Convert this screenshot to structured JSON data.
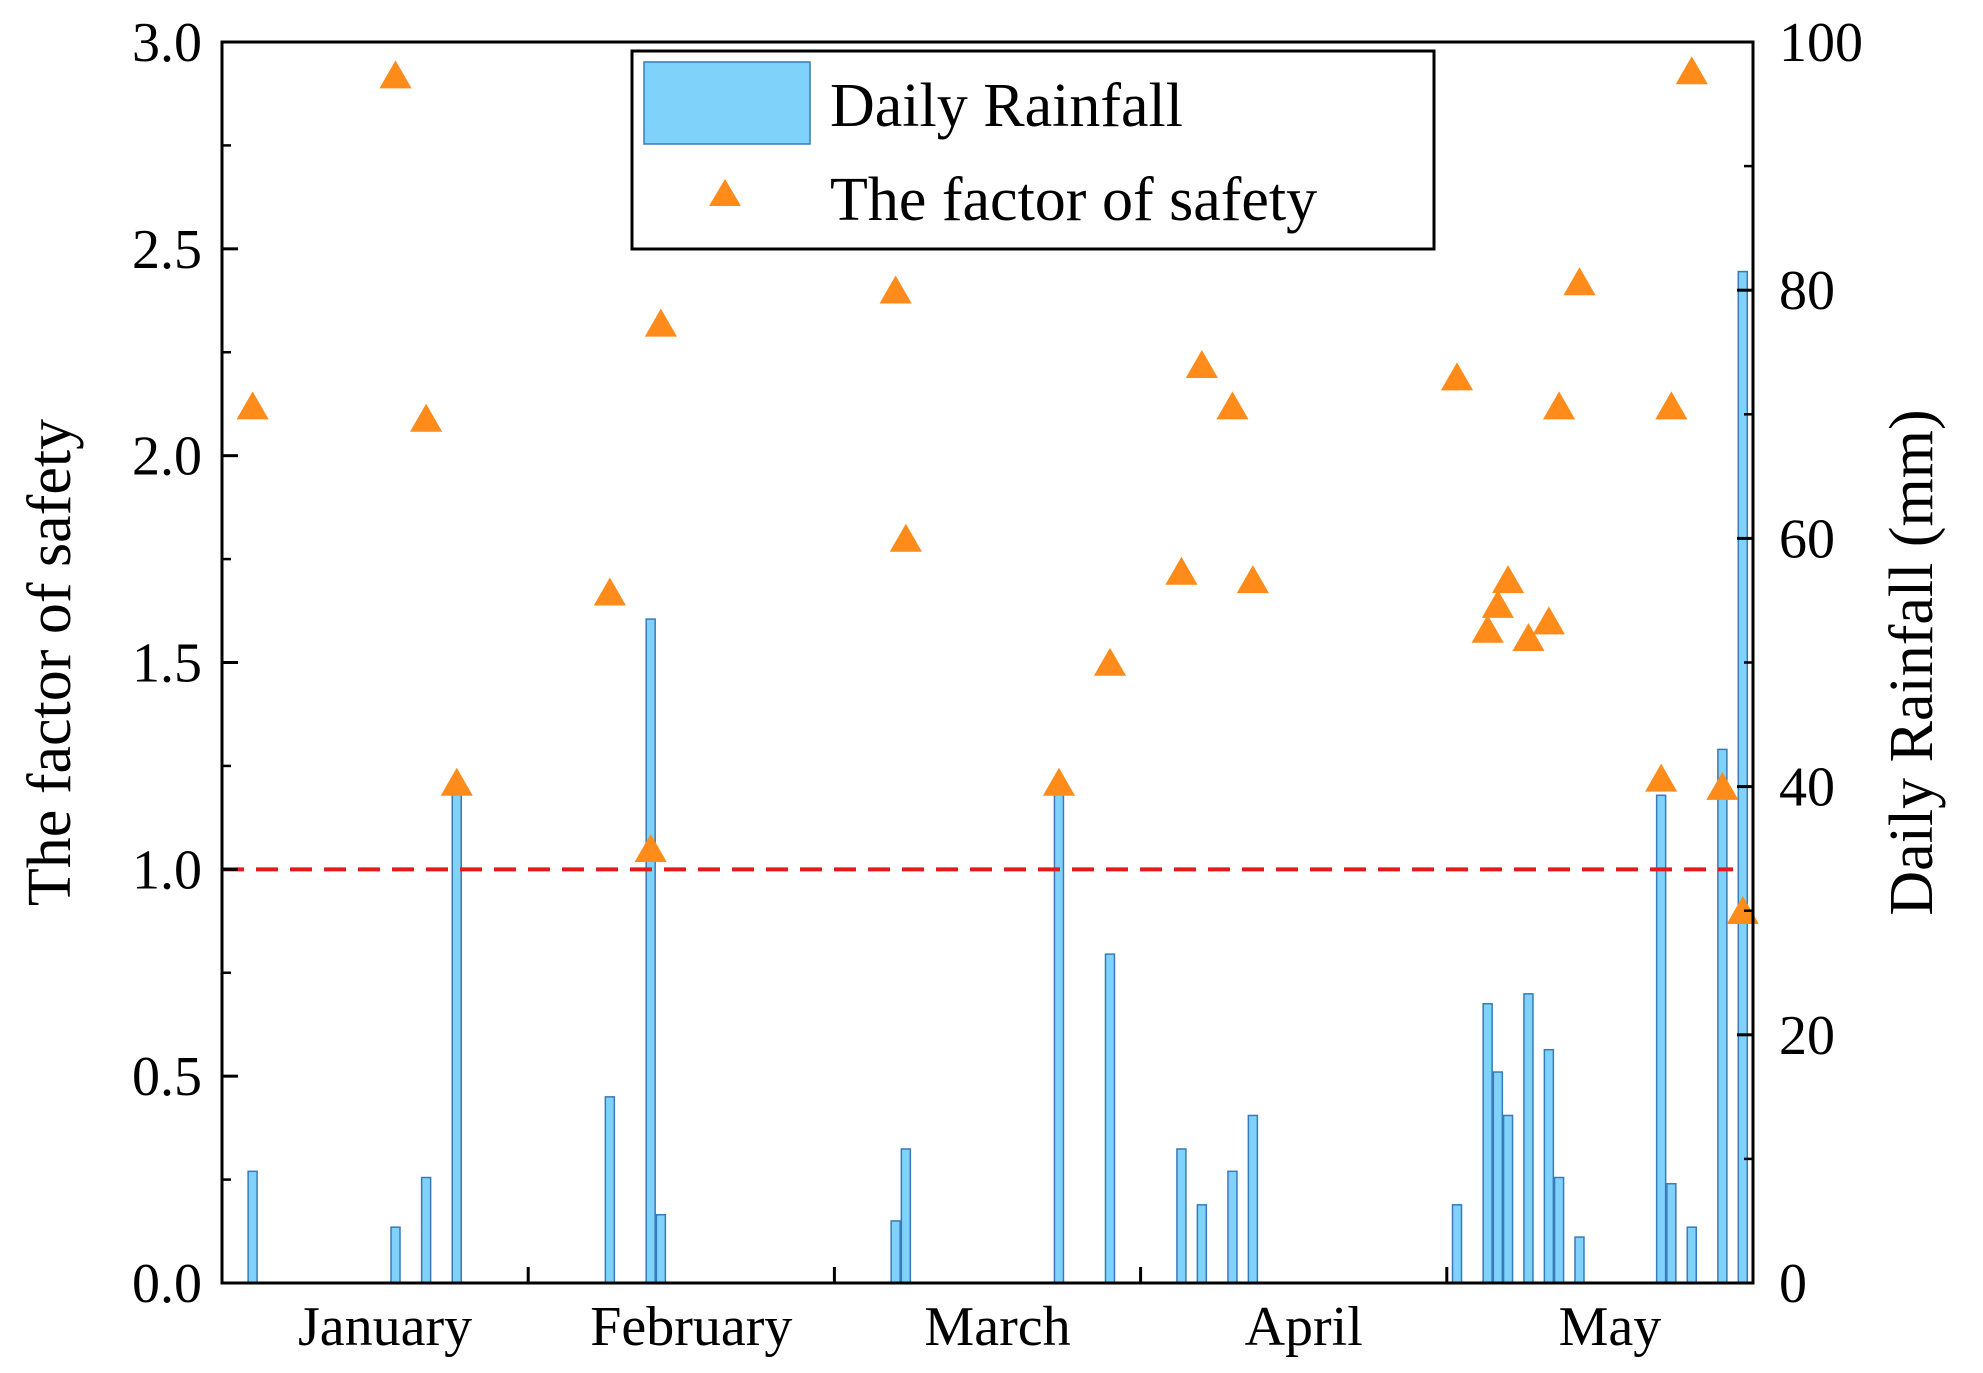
{
  "chart_data": {
    "type": "bar+scatter",
    "title": "",
    "xlabel": "",
    "months": [
      "January",
      "February",
      "March",
      "April",
      "May"
    ],
    "left_axis": {
      "label": "The factor of safety",
      "range": [
        0,
        3.0
      ],
      "ticks": [
        "0.0",
        "0.5",
        "1.0",
        "1.5",
        "2.0",
        "2.5",
        "3.0"
      ]
    },
    "right_axis": {
      "label": "Daily Rainfall (mm)",
      "range": [
        0,
        100
      ],
      "ticks": [
        "0",
        "20",
        "40",
        "60",
        "80",
        "100"
      ]
    },
    "threshold": {
      "value": 1.0,
      "style": "dashed",
      "color": "#e41a1c"
    },
    "legend": {
      "position": "top-center",
      "rainfall_label": "Daily Rainfall",
      "safety_label": "The factor of safety"
    },
    "colors": {
      "bar": "#7fd2fa",
      "bar_edge": "#3a7ab8",
      "marker": "#ff8c1a"
    },
    "day_range": [
      0,
      150
    ],
    "rainfall": [
      {
        "day": 3,
        "mm": 9
      },
      {
        "day": 17,
        "mm": 4.5
      },
      {
        "day": 20,
        "mm": 8.5
      },
      {
        "day": 23,
        "mm": 40
      },
      {
        "day": 38,
        "mm": 15
      },
      {
        "day": 42,
        "mm": 53.5
      },
      {
        "day": 43,
        "mm": 5.5
      },
      {
        "day": 66,
        "mm": 5
      },
      {
        "day": 67,
        "mm": 10.8
      },
      {
        "day": 82,
        "mm": 40
      },
      {
        "day": 87,
        "mm": 26.5
      },
      {
        "day": 94,
        "mm": 10.8
      },
      {
        "day": 96,
        "mm": 6.3
      },
      {
        "day": 99,
        "mm": 9
      },
      {
        "day": 101,
        "mm": 13.5
      },
      {
        "day": 121,
        "mm": 6.3
      },
      {
        "day": 124,
        "mm": 22.5
      },
      {
        "day": 125,
        "mm": 17
      },
      {
        "day": 126,
        "mm": 13.5
      },
      {
        "day": 128,
        "mm": 23.3
      },
      {
        "day": 130,
        "mm": 18.8
      },
      {
        "day": 131,
        "mm": 8.5
      },
      {
        "day": 133,
        "mm": 3.7
      },
      {
        "day": 141,
        "mm": 39.3
      },
      {
        "day": 142,
        "mm": 8
      },
      {
        "day": 144,
        "mm": 4.5
      },
      {
        "day": 147,
        "mm": 43
      },
      {
        "day": 149,
        "mm": 81.5
      }
    ],
    "factor_of_safety": [
      {
        "day": 3,
        "fs": 2.12
      },
      {
        "day": 17,
        "fs": 2.92
      },
      {
        "day": 20,
        "fs": 2.09
      },
      {
        "day": 23,
        "fs": 1.21
      },
      {
        "day": 38,
        "fs": 1.67
      },
      {
        "day": 42,
        "fs": 1.05
      },
      {
        "day": 43,
        "fs": 2.32
      },
      {
        "day": 66,
        "fs": 2.4
      },
      {
        "day": 67,
        "fs": 1.8
      },
      {
        "day": 82,
        "fs": 1.21
      },
      {
        "day": 87,
        "fs": 1.5
      },
      {
        "day": 94,
        "fs": 1.72
      },
      {
        "day": 96,
        "fs": 2.22
      },
      {
        "day": 99,
        "fs": 2.12
      },
      {
        "day": 101,
        "fs": 1.7
      },
      {
        "day": 121,
        "fs": 2.19
      },
      {
        "day": 124,
        "fs": 1.58
      },
      {
        "day": 125,
        "fs": 1.64
      },
      {
        "day": 126,
        "fs": 1.7
      },
      {
        "day": 128,
        "fs": 1.56
      },
      {
        "day": 130,
        "fs": 1.6
      },
      {
        "day": 131,
        "fs": 2.12
      },
      {
        "day": 133,
        "fs": 2.42
      },
      {
        "day": 141,
        "fs": 1.22
      },
      {
        "day": 142,
        "fs": 2.12
      },
      {
        "day": 144,
        "fs": 2.93
      },
      {
        "day": 147,
        "fs": 1.2
      },
      {
        "day": 149,
        "fs": 0.9
      }
    ]
  }
}
